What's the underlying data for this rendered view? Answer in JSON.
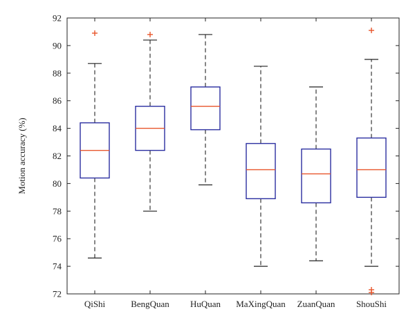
{
  "chart_data": {
    "type": "boxplot",
    "title": "",
    "xlabel": "",
    "ylabel": "Motion accuracy (%)",
    "ylim": [
      72,
      92
    ],
    "yticks": [
      72,
      74,
      76,
      78,
      80,
      82,
      84,
      86,
      88,
      90,
      92
    ],
    "grid": false,
    "categories": [
      "QiShi",
      "BengQuan",
      "HuQuan",
      "MaXingQuan",
      "ZuanQuan",
      "ShouShi"
    ],
    "series": [
      {
        "category": "QiShi",
        "whisker_low": 74.6,
        "q1": 80.4,
        "median": 82.4,
        "q3": 84.4,
        "whisker_high": 88.7,
        "outliers": [
          90.9
        ]
      },
      {
        "category": "BengQuan",
        "whisker_low": 78.0,
        "q1": 82.4,
        "median": 84.0,
        "q3": 85.6,
        "whisker_high": 90.4,
        "outliers": [
          90.8
        ]
      },
      {
        "category": "HuQuan",
        "whisker_low": 79.9,
        "q1": 83.9,
        "median": 85.6,
        "q3": 87.0,
        "whisker_high": 90.8,
        "outliers": []
      },
      {
        "category": "MaXingQuan",
        "whisker_low": 74.0,
        "q1": 78.9,
        "median": 81.0,
        "q3": 82.9,
        "whisker_high": 88.5,
        "outliers": []
      },
      {
        "category": "ZuanQuan",
        "whisker_low": 74.4,
        "q1": 78.6,
        "median": 80.7,
        "q3": 82.5,
        "whisker_high": 87.0,
        "outliers": []
      },
      {
        "category": "ShouShi",
        "whisker_low": 74.0,
        "q1": 79.0,
        "median": 81.0,
        "q3": 83.3,
        "whisker_high": 89.0,
        "outliers": [
          91.1,
          72.3,
          72.1
        ]
      }
    ],
    "colors": {
      "box": "#2a2ea0",
      "median": "#e8542a",
      "outlier": "#e8542a",
      "whisker": "#222222",
      "axes": "#222222"
    }
  }
}
